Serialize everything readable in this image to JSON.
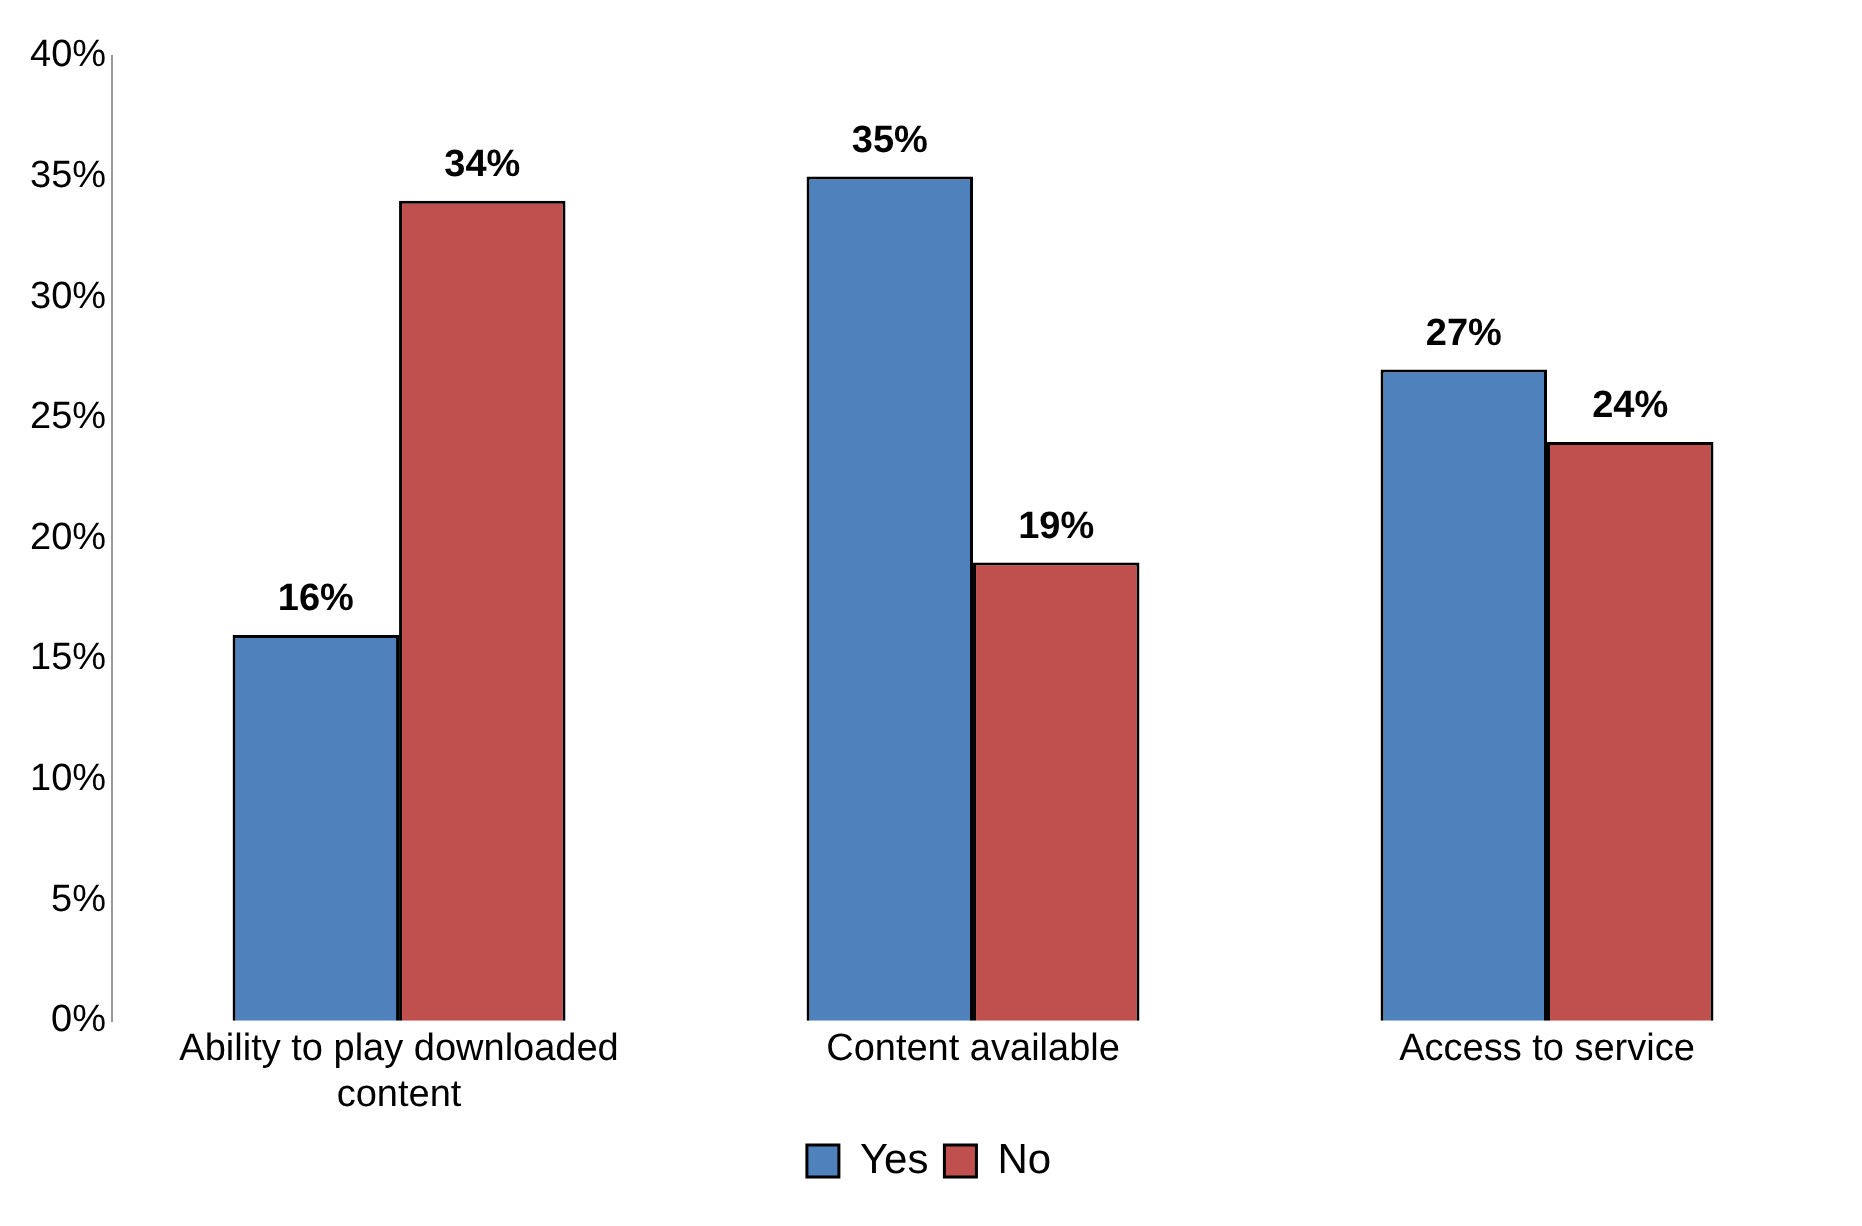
{
  "chart_data": {
    "type": "bar",
    "categories": [
      "Ability to play downloaded content",
      "Content available",
      "Access to service"
    ],
    "series": [
      {
        "name": "Yes",
        "color": "#4f81bd",
        "values": [
          16,
          35,
          27
        ],
        "value_labels": [
          "16%",
          "35%",
          "27%"
        ]
      },
      {
        "name": "No",
        "color": "#c0504d",
        "values": [
          34,
          19,
          24
        ],
        "value_labels": [
          "34%",
          "19%",
          "24%"
        ]
      }
    ],
    "ylim": [
      0,
      40
    ],
    "yticks": [
      {
        "value": 0,
        "label": "0%"
      },
      {
        "value": 5,
        "label": "5%"
      },
      {
        "value": 10,
        "label": "10%"
      },
      {
        "value": 15,
        "label": "15%"
      },
      {
        "value": 20,
        "label": "20%"
      },
      {
        "value": 25,
        "label": "25%"
      },
      {
        "value": 30,
        "label": "30%"
      },
      {
        "value": 35,
        "label": "35%"
      },
      {
        "value": 40,
        "label": "40%"
      }
    ],
    "grid": false,
    "legend": "bottom"
  }
}
